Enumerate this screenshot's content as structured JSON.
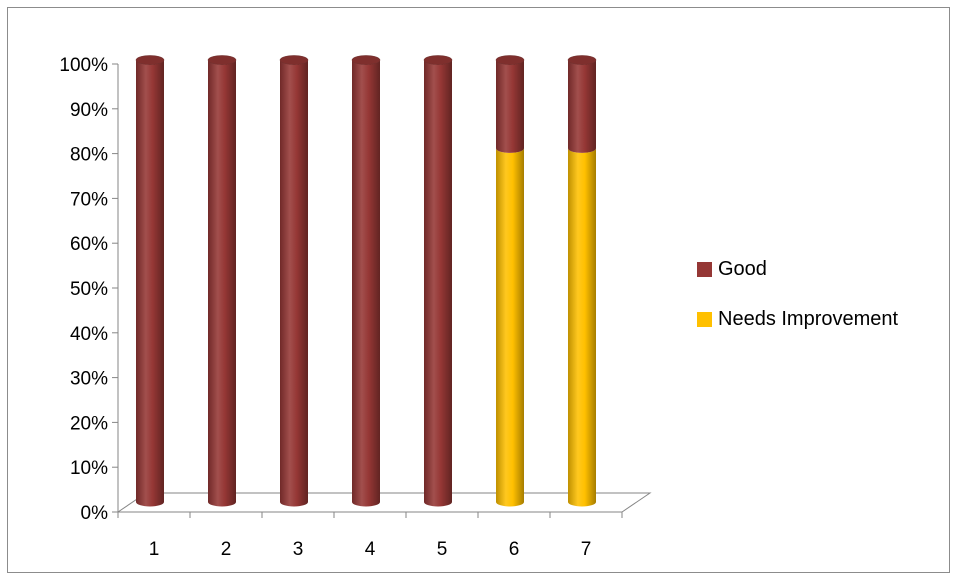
{
  "chart_data": {
    "type": "bar",
    "stacked": true,
    "style": "3d-cylinder",
    "categories": [
      "1",
      "2",
      "3",
      "4",
      "5",
      "6",
      "7"
    ],
    "series": [
      {
        "name": "Needs Improvement",
        "values": [
          0,
          0,
          0,
          0,
          0,
          80,
          80
        ],
        "color": "#FFC000"
      },
      {
        "name": "Good",
        "values": [
          100,
          100,
          100,
          100,
          100,
          20,
          20
        ],
        "color": "#953735"
      }
    ],
    "yticks": [
      "0%",
      "10%",
      "20%",
      "30%",
      "40%",
      "50%",
      "60%",
      "70%",
      "80%",
      "90%",
      "100%"
    ],
    "ylim": [
      0,
      100
    ],
    "ylabel_unit": "%",
    "legend_position": "right",
    "gridlines": false
  }
}
